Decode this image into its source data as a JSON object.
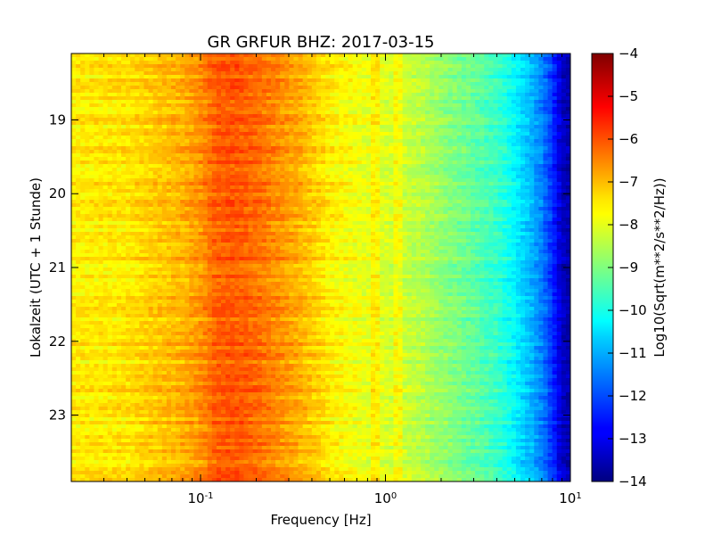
{
  "chart_data": {
    "type": "heatmap",
    "title": "GR GRFUR BHZ: 2017-03-15",
    "xlabel": "Frequency [Hz]",
    "ylabel": "Lokalzeit (UTC + 1 Stunde)",
    "x_scale": "log",
    "xlim": [
      0.02,
      10
    ],
    "x_ticks": [
      {
        "value": 0.1,
        "base": "10",
        "exp": "-1"
      },
      {
        "value": 1,
        "base": "10",
        "exp": "0"
      },
      {
        "value": 10,
        "base": "10",
        "exp": "1"
      }
    ],
    "ylim": [
      18.1,
      23.9
    ],
    "y_inverted": true,
    "y_ticks": [
      19,
      20,
      21,
      22,
      23
    ],
    "colorbar": {
      "label": "Log10(Sqrt(m**2/s**2/Hz))",
      "range": [
        -14,
        -4
      ],
      "ticks": [
        -4,
        -5,
        -6,
        -7,
        -8,
        -9,
        -10,
        -11,
        -12,
        -13,
        -14
      ],
      "colormap": "jet"
    },
    "spectrum_profile": {
      "frequency_hz": [
        0.02,
        0.04,
        0.06,
        0.08,
        0.1,
        0.12,
        0.15,
        0.2,
        0.3,
        0.4,
        0.5,
        0.7,
        1.0,
        1.5,
        2.0,
        3.0,
        4.0,
        5.0,
        6.0,
        7.0,
        8.0,
        9.0,
        10.0
      ],
      "log10_amplitude": [
        -7.6,
        -7.5,
        -7.2,
        -7.0,
        -6.7,
        -6.2,
        -6.1,
        -6.3,
        -6.8,
        -7.2,
        -7.6,
        -7.9,
        -8.1,
        -8.4,
        -8.8,
        -9.3,
        -9.7,
        -10.3,
        -10.9,
        -11.5,
        -12.3,
        -13.3,
        -13.6
      ]
    },
    "narrow_lines_hz": [
      0.9,
      1.18
    ],
    "colors": {
      "axis": "#000000",
      "background": "#ffffff"
    }
  }
}
